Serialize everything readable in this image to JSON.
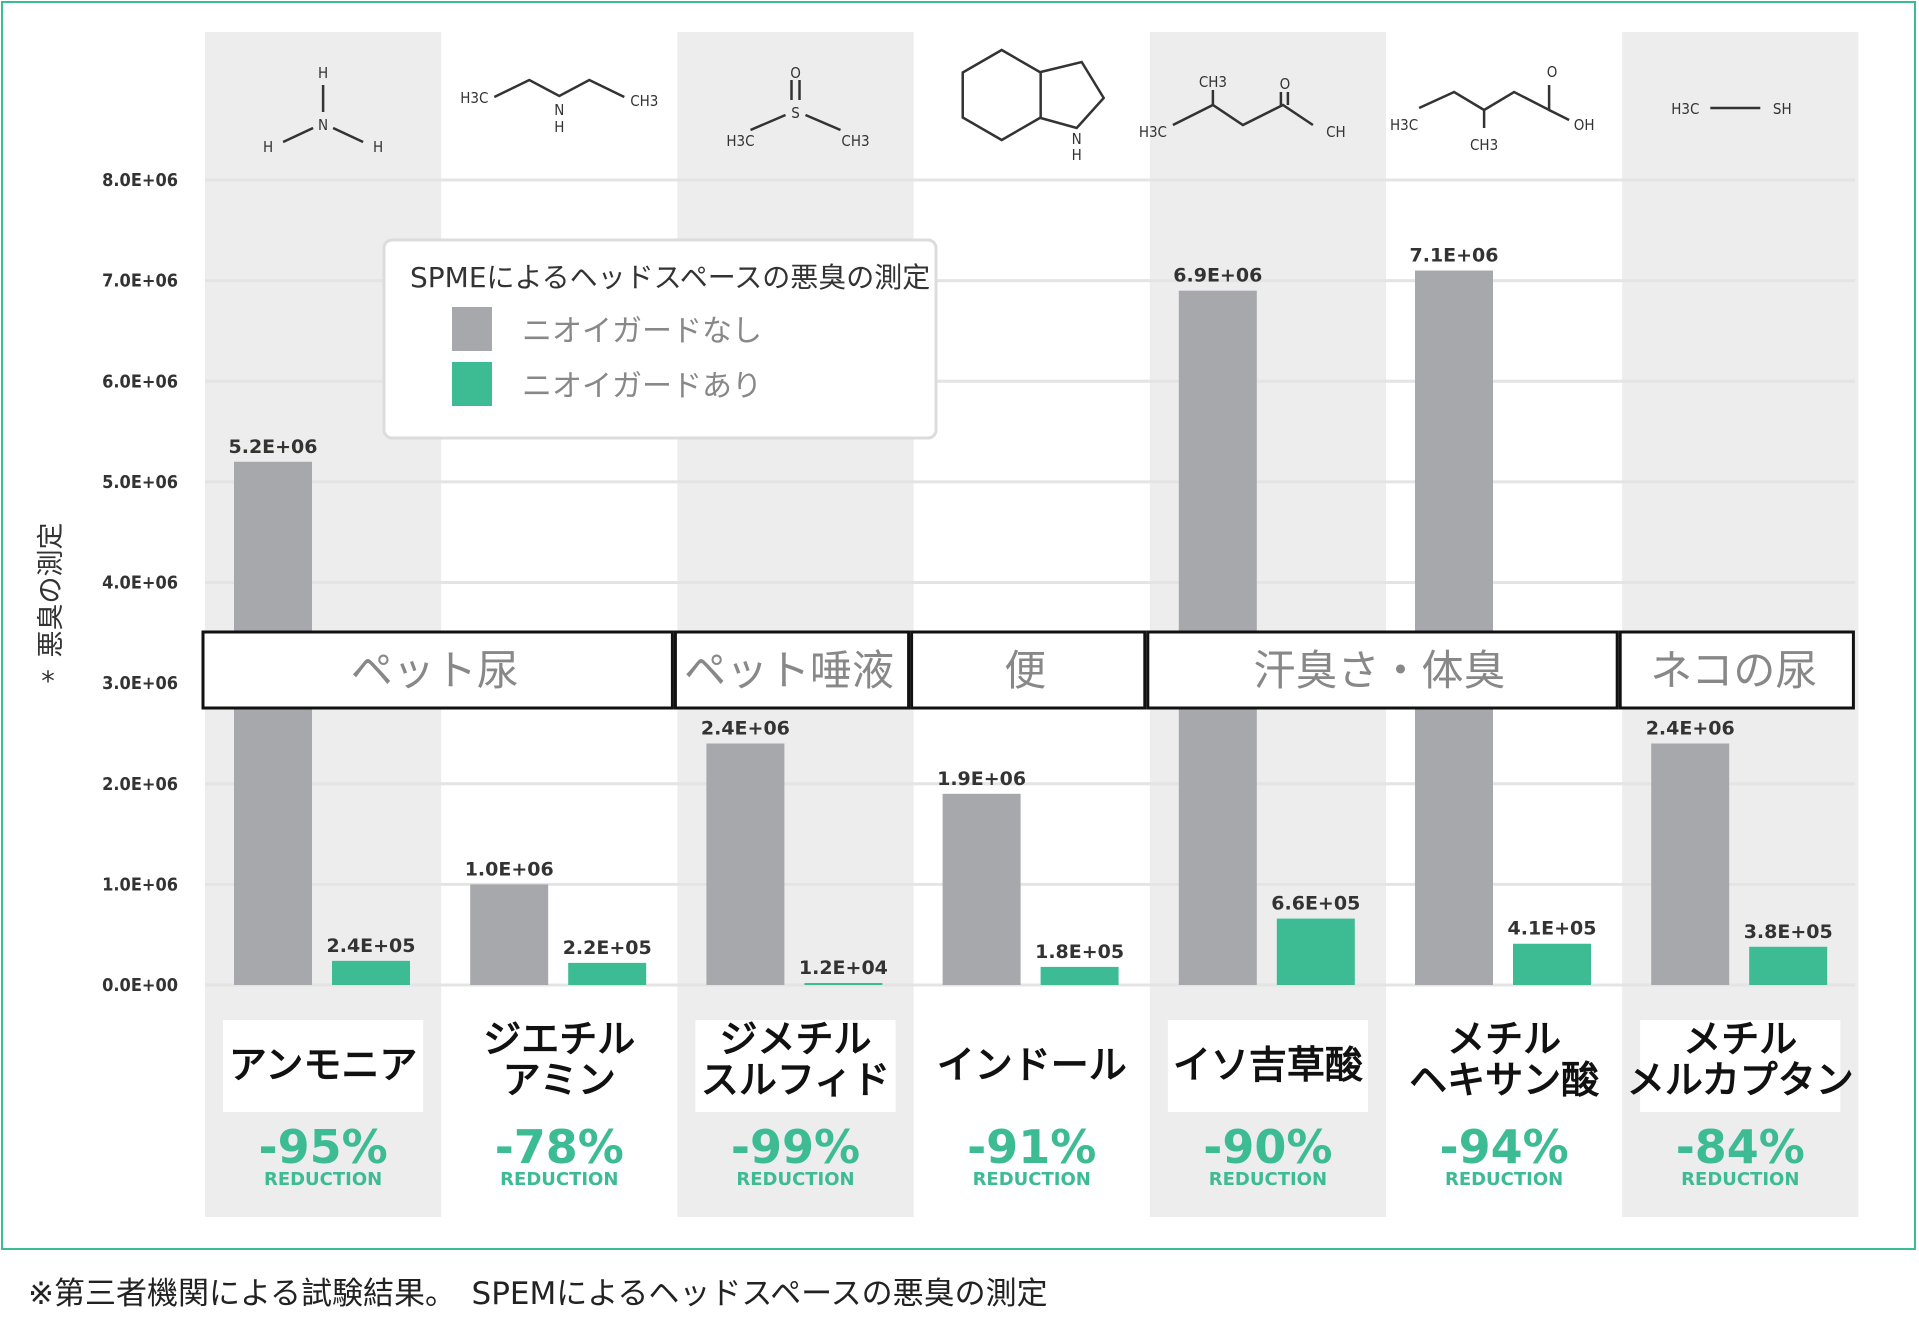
{
  "chart_data": {
    "type": "bar",
    "ylabel": "悪臭の測定",
    "ylabel_mark": "*",
    "ylim": [
      0,
      8000000
    ],
    "yticks": [
      {
        "value": 0,
        "label": "0.0E+00"
      },
      {
        "value": 1000000,
        "label": "1.0E+06"
      },
      {
        "value": 2000000,
        "label": "2.0E+06"
      },
      {
        "value": 3000000,
        "label": "3.0E+06"
      },
      {
        "value": 4000000,
        "label": "4.0E+06"
      },
      {
        "value": 5000000,
        "label": "5.0E+06"
      },
      {
        "value": 6000000,
        "label": "6.0E+06"
      },
      {
        "value": 7000000,
        "label": "7.0E+06"
      },
      {
        "value": 8000000,
        "label": "8.0E+06"
      }
    ],
    "grid": true,
    "legend": {
      "title": "SPMEによるヘッドスペースの悪臭の測定",
      "position": "top-left"
    },
    "categories": [
      "アンモニア",
      "ジエチル\nアミン",
      "ジメチル\nスルフィド",
      "インドール",
      "イソ吉草酸",
      "メチル\nヘキサン酸",
      "メチル\nメルカプタン"
    ],
    "series": [
      {
        "name": "ニオイガードなし",
        "color": "#a7a8ab",
        "values": [
          5200000,
          1000000,
          2400000,
          1900000,
          6900000,
          7100000,
          2400000
        ],
        "labels": [
          "5.2E+06",
          "1.0E+06",
          "2.4E+06",
          "1.9E+06",
          "6.9E+06",
          "7.1E+06",
          "2.4E+06"
        ]
      },
      {
        "name": "ニオイガードあり",
        "color": "#3dbb93",
        "values": [
          240000,
          220000,
          12000,
          180000,
          660000,
          410000,
          380000
        ],
        "labels": [
          "2.4E+05",
          "2.2E+05",
          "1.2E+04",
          "1.8E+05",
          "6.6E+05",
          "4.1E+05",
          "3.8E+05"
        ]
      }
    ],
    "reductions": [
      "-95%",
      "-78%",
      "-99%",
      "-91%",
      "-90%",
      "-94%",
      "-84%"
    ],
    "reduction_word": "REDUCTION",
    "source_groups": [
      {
        "label": "ペット尿",
        "from": 0,
        "to": 1
      },
      {
        "label": "ペット唾液",
        "from": 2,
        "to": 2
      },
      {
        "label": "便",
        "from": 3,
        "to": 3
      },
      {
        "label": "汗臭さ・体臭",
        "from": 4,
        "to": 5
      },
      {
        "label": "ネコの尿",
        "from": 6,
        "to": 6
      }
    ],
    "chemical_labels": [
      [
        "H",
        "N",
        "H",
        "H"
      ],
      [
        "H3C",
        "N",
        "H",
        "CH3"
      ],
      [
        "O",
        "S",
        "H3C",
        "CH3"
      ],
      [
        "N",
        "H"
      ],
      [
        "CH3",
        "O",
        "H3C",
        "CH"
      ],
      [
        "O",
        "H3C",
        "OH",
        "CH3"
      ],
      [
        "H3C",
        "SH"
      ]
    ]
  },
  "footnote": "※第三者機関による試験結果。　SPEMによるヘッドスペースの悪臭の測定"
}
